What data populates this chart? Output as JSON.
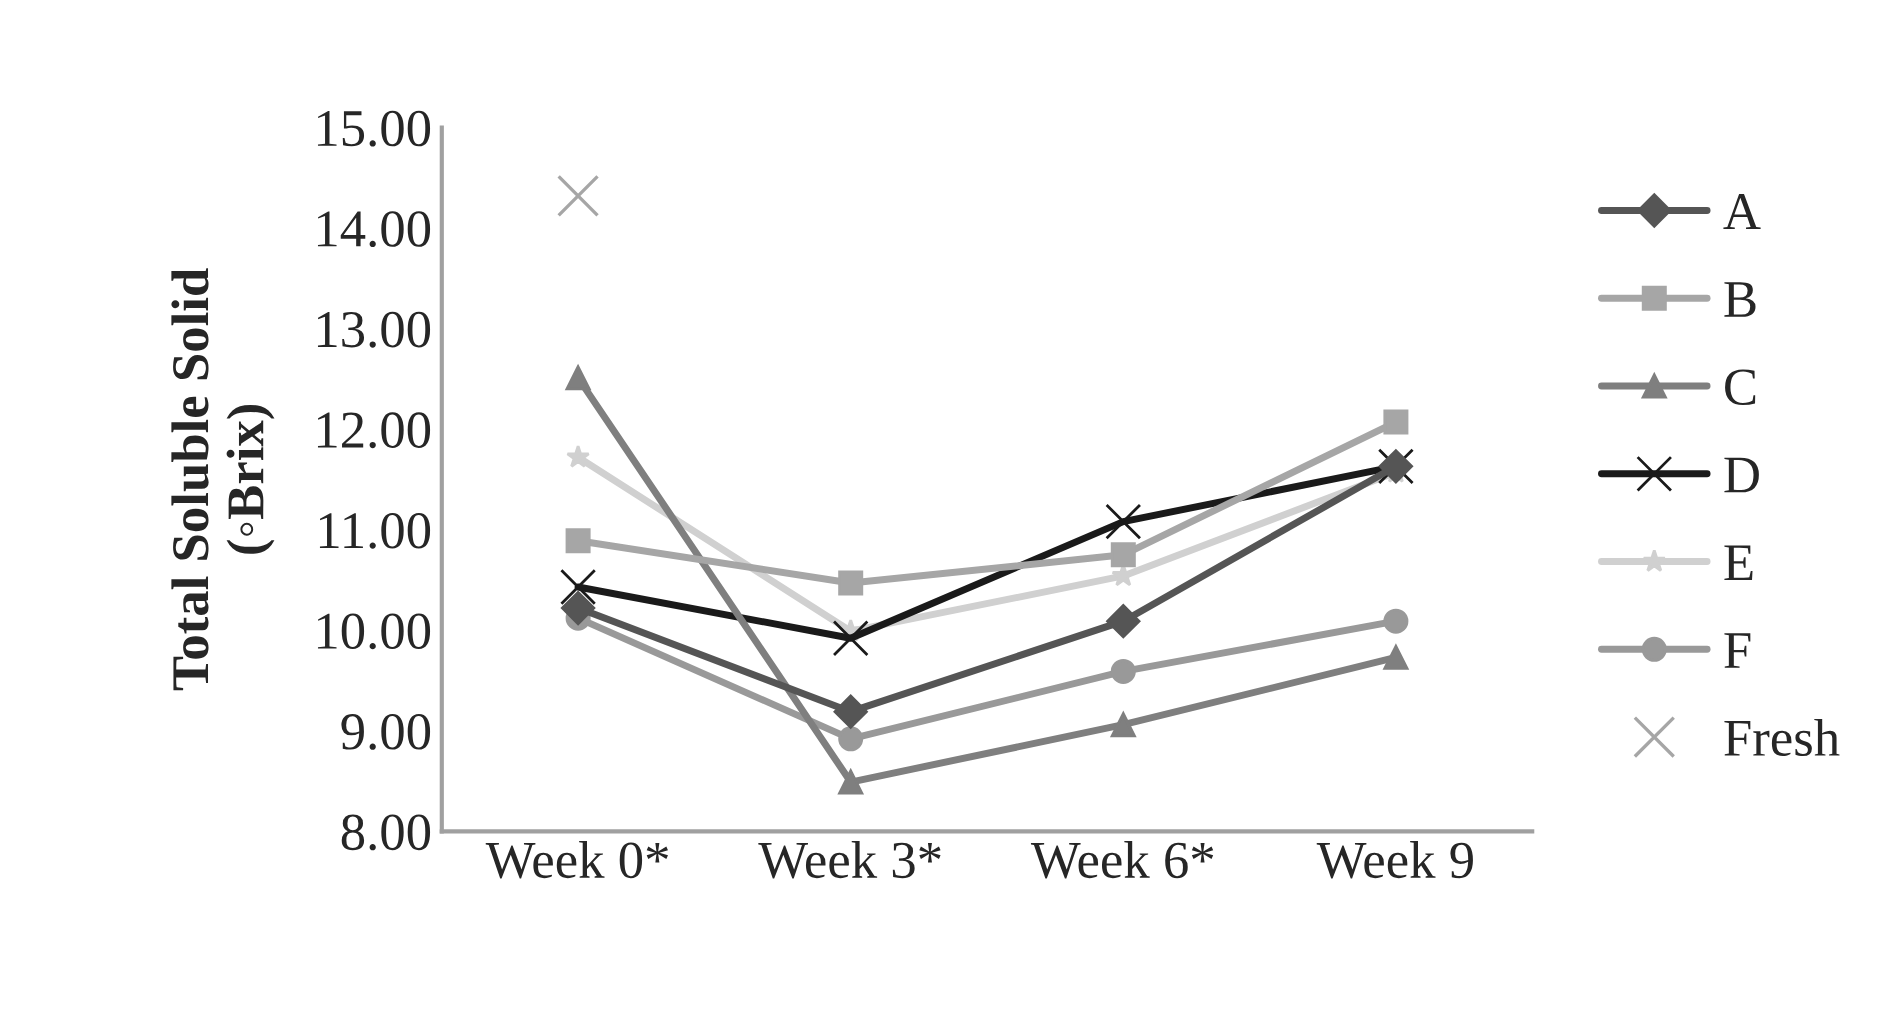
{
  "chart_data": {
    "type": "line",
    "ylabel": "Total Soluble Solid\n(◦Brix)",
    "categories": [
      "Week 0*",
      "Week 3*",
      "Week 6*",
      "Week 9"
    ],
    "series": [
      {
        "name": "A",
        "color": "#555555",
        "marker": "diamond",
        "values": [
          10.22,
          9.19,
          10.09,
          11.63
        ]
      },
      {
        "name": "B",
        "color": "#a6a6a6",
        "marker": "square",
        "values": [
          10.89,
          10.47,
          10.75,
          12.07
        ]
      },
      {
        "name": "C",
        "color": "#7f7f7f",
        "marker": "triangle",
        "values": [
          12.51,
          8.49,
          9.06,
          9.73
        ]
      },
      {
        "name": "D",
        "color": "#1a1a1a",
        "marker": "cross",
        "values": [
          10.43,
          9.92,
          11.08,
          11.63
        ]
      },
      {
        "name": "E",
        "color": "#d0d0d0",
        "marker": "star",
        "values": [
          11.72,
          9.99,
          10.54,
          11.57
        ]
      },
      {
        "name": "F",
        "color": "#999999",
        "marker": "circle",
        "values": [
          10.12,
          8.92,
          9.59,
          10.09
        ]
      },
      {
        "name": "Fresh",
        "type": "scatter",
        "color": "#a6a6a6",
        "marker": "cross",
        "values": [
          14.32,
          null,
          null,
          null
        ]
      }
    ],
    "ylim": [
      8,
      15
    ],
    "yticks": [
      {
        "value": 8,
        "label": "8.00"
      },
      {
        "value": 9,
        "label": "9.00"
      },
      {
        "value": 10,
        "label": "10.00"
      },
      {
        "value": 11,
        "label": "11.00"
      },
      {
        "value": 12,
        "label": "12.00"
      },
      {
        "value": 13,
        "label": "13.00"
      },
      {
        "value": 14,
        "label": "14.00"
      },
      {
        "value": 15,
        "label": "15.00"
      }
    ],
    "grid": false,
    "legend": "right"
  }
}
